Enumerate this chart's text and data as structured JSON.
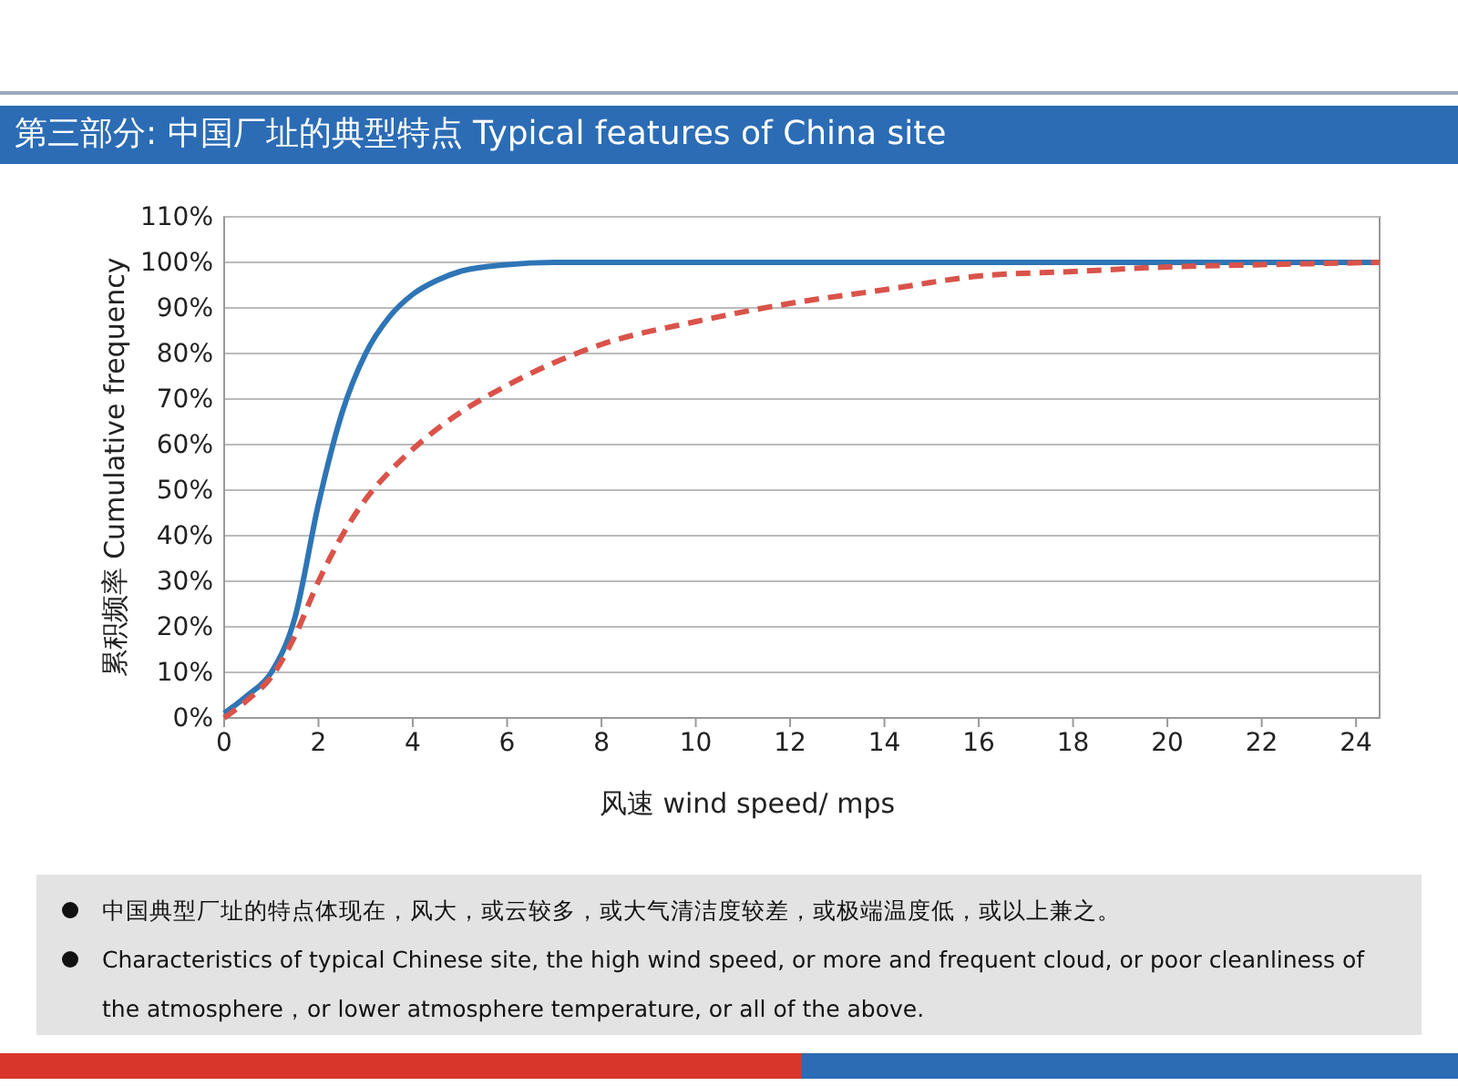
{
  "chart_data": {
    "type": "line",
    "title": "第三部分: 中国厂址的典型特点 Typical features of China site",
    "xlabel": "风速 wind speed/ mps",
    "ylabel": "累积频率 Cumulative frequency",
    "series": [
      {
        "color": "#2e75b6",
        "line_style": "solid",
        "x": [
          0,
          0.5,
          1,
          1.5,
          2,
          2.5,
          3,
          3.5,
          4,
          4.5,
          5,
          6,
          7,
          24.5
        ],
        "values": [
          1,
          5,
          10,
          22,
          47,
          67,
          80,
          88,
          93,
          96,
          98,
          99.5,
          100,
          100
        ]
      },
      {
        "color": "#d9534a",
        "line_style": "dashed",
        "x": [
          0,
          0.5,
          1,
          1.5,
          2,
          2.5,
          3,
          3.5,
          4,
          5,
          6,
          7,
          8,
          10,
          12,
          14,
          16,
          18,
          20,
          22,
          24.5
        ],
        "values": [
          0,
          4,
          9,
          18,
          30,
          40,
          48,
          54,
          59,
          67,
          73,
          78,
          82,
          87,
          91,
          94,
          97,
          98,
          99,
          99.5,
          100
        ]
      }
    ],
    "xlim": [
      0,
      24.5
    ],
    "xticks": [
      0,
      2,
      4,
      6,
      8,
      10,
      12,
      14,
      16,
      18,
      20,
      22,
      24
    ],
    "ylim": [
      0,
      110
    ],
    "yticks": [
      {
        "value": 0,
        "label": "0%"
      },
      {
        "value": 10,
        "label": "10%"
      },
      {
        "value": 20,
        "label": "20%"
      },
      {
        "value": 30,
        "label": "30%"
      },
      {
        "value": 40,
        "label": "40%"
      },
      {
        "value": 50,
        "label": "50%"
      },
      {
        "value": 60,
        "label": "60%"
      },
      {
        "value": 70,
        "label": "70%"
      },
      {
        "value": 80,
        "label": "80%"
      },
      {
        "value": 90,
        "label": "90%"
      },
      {
        "value": 100,
        "label": "100%"
      },
      {
        "value": 110,
        "label": "110%"
      }
    ],
    "grid": "y",
    "marker": "none",
    "annotations": [
      "中国典型厂址的特点体现在，风大，或云较多，或大气清洁度较差，或极端温度低，或以上兼之。",
      "Characteristics of typical Chinese site, the high wind speed, or more and frequent cloud, or poor cleanliness of the atmosphere，or lower atmosphere temperature, or all of the above."
    ]
  }
}
